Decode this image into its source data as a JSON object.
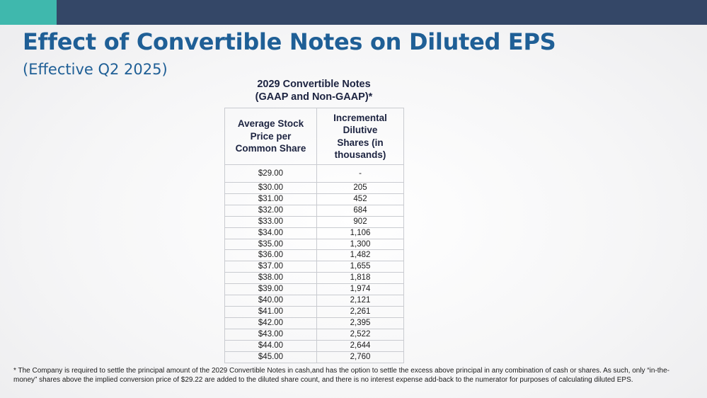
{
  "slide": {
    "title": "Effect of Convertible Notes on Diluted EPS",
    "subtitle": "(Effective Q2 2025)"
  },
  "table": {
    "heading_line1": "2029 Convertible Notes",
    "heading_line2": "(GAAP and Non-GAAP)*",
    "columns": [
      "Average Stock Price per Common Share",
      "Incremental Dilutive Shares (in thousands)"
    ],
    "rows": [
      {
        "price": "$29.00",
        "shares": "-"
      },
      {
        "price": "$30.00",
        "shares": "205"
      },
      {
        "price": "$31.00",
        "shares": "452"
      },
      {
        "price": "$32.00",
        "shares": "684"
      },
      {
        "price": "$33.00",
        "shares": "902"
      },
      {
        "price": "$34.00",
        "shares": "1,106"
      },
      {
        "price": "$35.00",
        "shares": "1,300"
      },
      {
        "price": "$36.00",
        "shares": "1,482"
      },
      {
        "price": "$37.00",
        "shares": "1,655"
      },
      {
        "price": "$38.00",
        "shares": "1,818"
      },
      {
        "price": "$39.00",
        "shares": "1,974"
      },
      {
        "price": "$40.00",
        "shares": "2,121"
      },
      {
        "price": "$41.00",
        "shares": "2,261"
      },
      {
        "price": "$42.00",
        "shares": "2,395"
      },
      {
        "price": "$43.00",
        "shares": "2,522"
      },
      {
        "price": "$44.00",
        "shares": "2,644"
      },
      {
        "price": "$45.00",
        "shares": "2,760"
      }
    ]
  },
  "footnote": "* The Company is required to settle the principal amount of the 2029 Convertible Notes in cash,and has the option to settle the excess above principal in any combination of cash or shares. As such, only “in-the-money” shares above the implied conversion price of $29.22 are added to the diluted share count, and there is no interest expense add-back to the numerator for purposes of calculating diluted EPS.",
  "colors": {
    "accent_teal": "#3fb8ad",
    "header_navy": "#344767",
    "title_blue": "#1f5f96"
  }
}
